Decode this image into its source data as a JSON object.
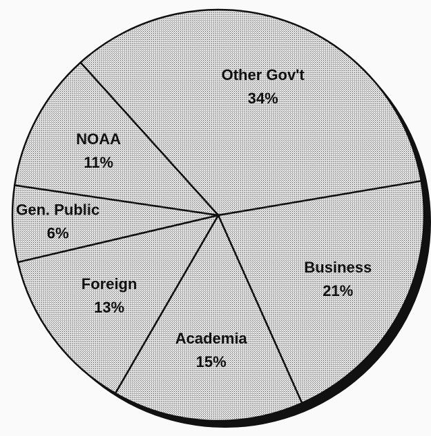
{
  "chart_data": {
    "type": "pie",
    "categories": [
      "Other Gov't",
      "Business",
      "Academia",
      "Foreign",
      "Gen. Public",
      "NOAA"
    ],
    "values": [
      34,
      21,
      15,
      13,
      6,
      11
    ],
    "value_labels": [
      "34%",
      "21%",
      "15%",
      "13%",
      "6%",
      "11%"
    ],
    "color": "#c9c9c9"
  }
}
